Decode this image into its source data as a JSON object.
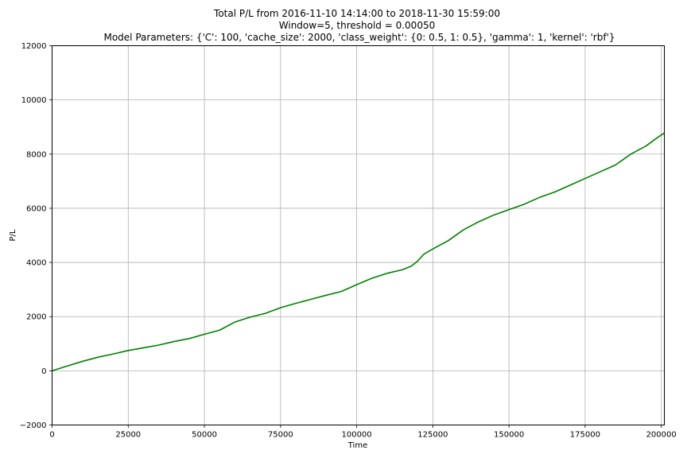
{
  "chart_data": {
    "type": "line",
    "title": [
      "Total P/L from 2016-11-10 14:14:00 to 2018-11-30 15:59:00",
      "Window=5, threshold = 0.00050",
      "Model Parameters: {'C': 100, 'cache_size': 2000, 'class_weight': {0: 0.5, 1: 0.5}, 'gamma': 1, 'kernel': 'rbf'}"
    ],
    "xlabel": "Time",
    "ylabel": "P/L",
    "xlim": [
      0,
      201000
    ],
    "ylim": [
      -2000,
      12000
    ],
    "x_ticks": [
      0,
      25000,
      50000,
      75000,
      100000,
      125000,
      150000,
      175000,
      200000
    ],
    "y_ticks": [
      -2000,
      0,
      2000,
      4000,
      6000,
      8000,
      10000,
      12000
    ],
    "x_tick_labels": [
      "0",
      "25000",
      "50000",
      "75000",
      "100000",
      "125000",
      "150000",
      "175000",
      "200000"
    ],
    "y_tick_labels": [
      "−2000",
      "0",
      "2000",
      "4000",
      "6000",
      "8000",
      "10000",
      "12000"
    ],
    "grid": true,
    "series": [
      {
        "color": "#008000",
        "x": [
          0,
          5000,
          10000,
          15000,
          20000,
          25000,
          30000,
          35000,
          40000,
          45000,
          50000,
          55000,
          60000,
          65000,
          70000,
          75000,
          80000,
          85000,
          90000,
          95000,
          100000,
          105000,
          110000,
          115000,
          118000,
          120000,
          122000,
          125000,
          130000,
          135000,
          140000,
          145000,
          150000,
          155000,
          160000,
          165000,
          170000,
          175000,
          180000,
          185000,
          190000,
          195000,
          198000,
          201000
        ],
        "y": [
          0,
          180,
          350,
          500,
          620,
          750,
          850,
          950,
          1080,
          1190,
          1350,
          1500,
          1800,
          1980,
          2120,
          2330,
          2490,
          2640,
          2790,
          2930,
          3180,
          3420,
          3600,
          3730,
          3870,
          4050,
          4300,
          4500,
          4800,
          5200,
          5500,
          5750,
          5950,
          6150,
          6400,
          6600,
          6850,
          7100,
          7350,
          7600,
          8000,
          8300,
          8550,
          8780
        ]
      }
    ]
  }
}
